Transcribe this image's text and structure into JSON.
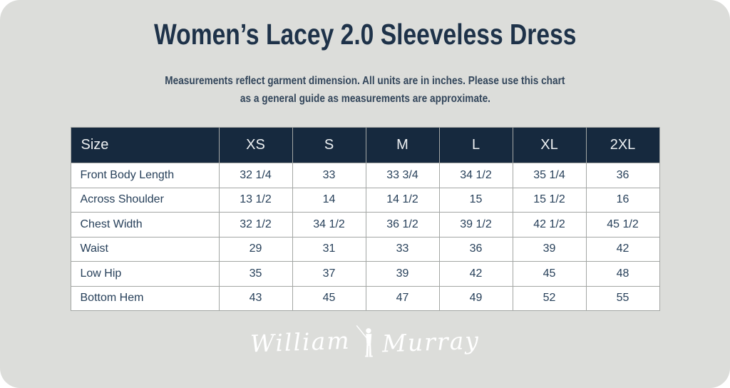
{
  "header": {
    "title": "Women’s Lacey 2.0 Sleeveless Dress",
    "subtitle_line1": "Measurements reflect garment dimension. All units are in inches. Please use this chart",
    "subtitle_line2": "as a general guide as measurements are approximate."
  },
  "chart_data": {
    "type": "table",
    "title": "Women’s Lacey 2.0 Sleeveless Dress",
    "columns": [
      "Size",
      "XS",
      "S",
      "M",
      "L",
      "XL",
      "2XL"
    ],
    "rows": [
      {
        "label": "Front Body Length",
        "values": [
          "32 1/4",
          "33",
          "33 3/4",
          "34 1/2",
          "35 1/4",
          "36"
        ]
      },
      {
        "label": "Across Shoulder",
        "values": [
          "13 1/2",
          "14",
          "14 1/2",
          "15",
          "15 1/2",
          "16"
        ]
      },
      {
        "label": "Chest Width",
        "values": [
          "32 1/2",
          "34 1/2",
          "36 1/2",
          "39 1/2",
          "42 1/2",
          "45 1/2"
        ]
      },
      {
        "label": "Waist",
        "values": [
          "29",
          "31",
          "33",
          "36",
          "39",
          "42"
        ]
      },
      {
        "label": "Low Hip",
        "values": [
          "35",
          "37",
          "39",
          "42",
          "45",
          "48"
        ]
      },
      {
        "label": "Bottom Hem",
        "values": [
          "43",
          "45",
          "47",
          "49",
          "52",
          "55"
        ]
      }
    ]
  },
  "brand": {
    "first_word": "William",
    "second_word": "Murray",
    "icon": "golfer-icon"
  },
  "colors": {
    "card_background": "#dcddda",
    "header_background": "#16293e",
    "title_navy": "#1e3249",
    "text_navy": "#27405a",
    "table_border": "#a3a6a4",
    "logo_white": "#ffffff"
  }
}
